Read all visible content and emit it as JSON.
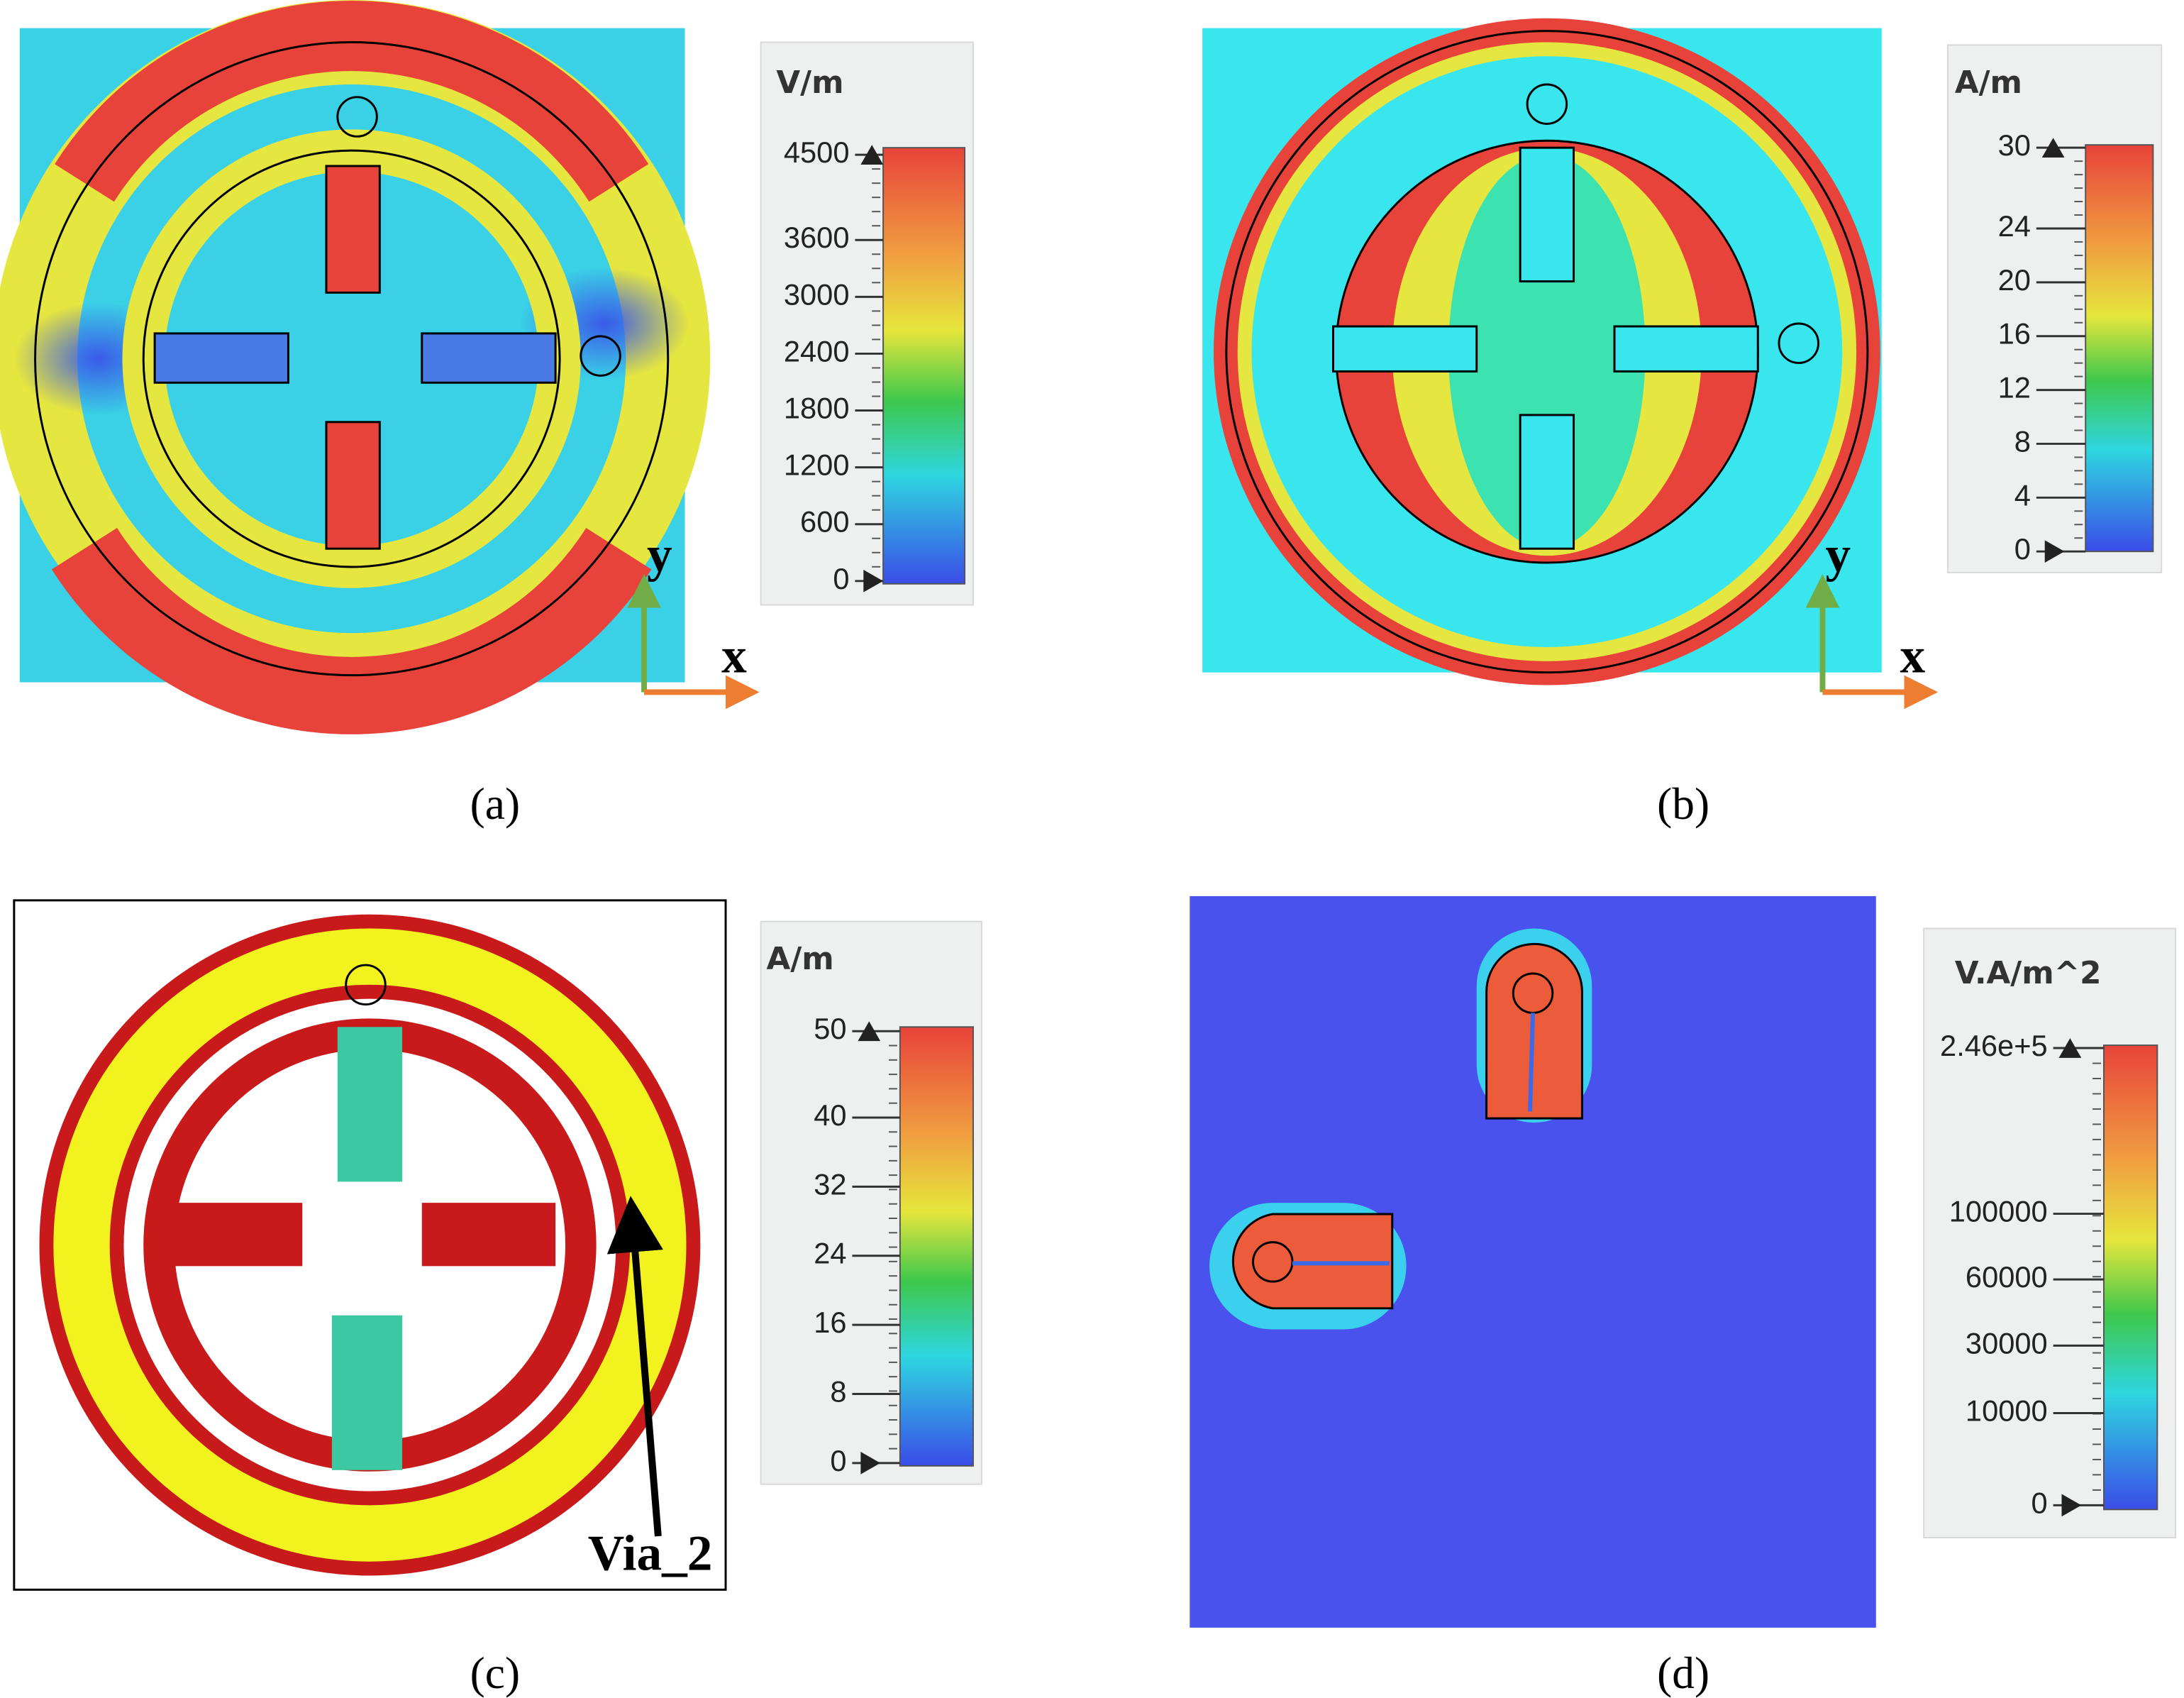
{
  "panels": [
    {
      "caption": "(a)",
      "unit": "V/m",
      "scale": "linear",
      "ticks": [
        4500,
        3600,
        3000,
        2400,
        1800,
        1200,
        600,
        0
      ],
      "axes": {
        "x": "x",
        "y": "y"
      }
    },
    {
      "caption": "(b)",
      "unit": "A/m",
      "scale": "linear",
      "ticks": [
        30,
        24,
        20,
        16,
        12,
        8,
        4,
        0
      ],
      "axes": {
        "x": "x",
        "y": "y"
      }
    },
    {
      "caption": "(c)",
      "unit": "A/m",
      "scale": "linear",
      "ticks": [
        50,
        40,
        32,
        24,
        16,
        8,
        0
      ],
      "annotation": "Via_2"
    },
    {
      "caption": "(d)",
      "unit": "V.A/m^2",
      "scale": "sqrt",
      "ticks": [
        {
          "value": 246000,
          "label": "2.46e+5"
        },
        100000,
        60000,
        30000,
        10000,
        0
      ]
    }
  ]
}
